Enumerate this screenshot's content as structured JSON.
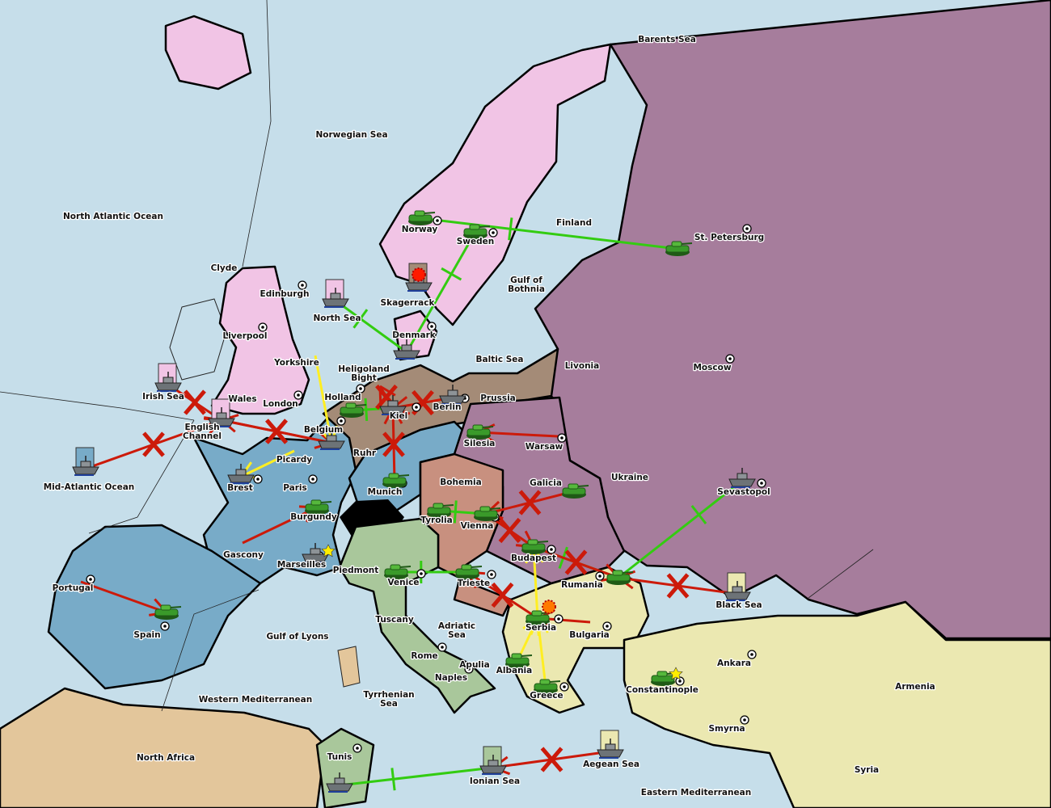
{
  "colors": {
    "sea": "#c6deea",
    "russia": "#a67d9c",
    "england": "#f1c4e5",
    "france": "#78abc8",
    "germany": "#a48b77",
    "austria": "#c8907f",
    "italy": "#a9c79b",
    "turkey": "#ebe8b1",
    "neutral_africa": "#e3c69b",
    "support_order": "#33cc11",
    "move_order": "#cc1a0a",
    "convoy_order": "#ffee22",
    "tank": "#3a9a2a",
    "ship": "#6d7377"
  },
  "labels": [
    "Barents Sea",
    "Norwegian Sea",
    "North Atlantic Ocean",
    "Finland",
    "St. Petersburg",
    "Norway",
    "Sweden",
    "Gulf of|Bothnia",
    "Clyde",
    "Edinburgh",
    "Skagerrack",
    "North Sea",
    "Liverpool",
    "Denmark",
    "Baltic Sea",
    "Livonia",
    "Moscow",
    "Yorkshire",
    "Heligoland|Bight",
    "Irish Sea",
    "Wales",
    "Holland",
    "Prussia",
    "London",
    "Berlin",
    "Kiel",
    "English|Channel",
    "Belgium",
    "Silesia",
    "Warsaw",
    "Ruhr",
    "Picardy",
    "Ukraine",
    "Bohemia",
    "Galicia",
    "Mid-Atlantic Ocean",
    "Brest",
    "Paris",
    "Munich",
    "Sevastopol",
    "Burgundy",
    "Tyrolia",
    "Vienna",
    "Gascony",
    "Budapest",
    "Marseilles",
    "Piedmont",
    "Rumania",
    "Portugal",
    "Venice",
    "Trieste",
    "Black Sea",
    "Tuscany",
    "Adriatic|Sea",
    "Serbia",
    "Bulgaria",
    "Spain",
    "Gulf of Lyons",
    "Rome",
    "Apulia",
    "Albania",
    "Ankara",
    "Naples",
    "Armenia",
    "Constantinople",
    "Greece",
    "Western Mediterranean",
    "Tyrrhenian|Sea",
    "Smyrna",
    "North Africa",
    "Tunis",
    "Aegean Sea",
    "Ionian Sea",
    "Syria",
    "Eastern Mediterranean"
  ],
  "units": [
    {
      "type": "army",
      "at": "Norway"
    },
    {
      "type": "army",
      "at": "Sweden"
    },
    {
      "type": "army",
      "at": "St. Petersburg"
    },
    {
      "type": "fleet",
      "at": "North Sea",
      "flag": "england"
    },
    {
      "type": "fleet",
      "at": "Skagerrack",
      "flag": "germany",
      "dislodged": true
    },
    {
      "type": "fleet",
      "at": "Denmark"
    },
    {
      "type": "fleet",
      "at": "Irish Sea",
      "flag": "england"
    },
    {
      "type": "fleet",
      "at": "English Channel",
      "flag": "england"
    },
    {
      "type": "fleet",
      "at": "Mid-Atlantic Ocean",
      "flag": "france"
    },
    {
      "type": "army",
      "at": "Holland"
    },
    {
      "type": "fleet",
      "at": "Kiel"
    },
    {
      "type": "fleet",
      "at": "Berlin"
    },
    {
      "type": "fleet",
      "at": "Belgium"
    },
    {
      "type": "army",
      "at": "Silesia"
    },
    {
      "type": "fleet",
      "at": "Brest"
    },
    {
      "type": "army",
      "at": "Munich"
    },
    {
      "type": "army",
      "at": "Burgundy"
    },
    {
      "type": "fleet",
      "at": "Marseilles",
      "star": true
    },
    {
      "type": "army",
      "at": "Spain"
    },
    {
      "type": "army",
      "at": "Tyrolia"
    },
    {
      "type": "army",
      "at": "Vienna"
    },
    {
      "type": "army",
      "at": "Galicia"
    },
    {
      "type": "fleet",
      "at": "Sevastopol"
    },
    {
      "type": "army",
      "at": "Budapest"
    },
    {
      "type": "army",
      "at": "Trieste"
    },
    {
      "type": "army",
      "at": "Venice"
    },
    {
      "type": "army",
      "at": "Rumania"
    },
    {
      "type": "fleet",
      "at": "Black Sea",
      "flag": "turkey"
    },
    {
      "type": "army",
      "at": "Serbia",
      "dislodged": true
    },
    {
      "type": "army",
      "at": "Albania"
    },
    {
      "type": "army",
      "at": "Greece"
    },
    {
      "type": "army",
      "at": "Constantinople",
      "star": true
    },
    {
      "type": "fleet",
      "at": "Aegean Sea",
      "flag": "turkey"
    },
    {
      "type": "fleet",
      "at": "Ionian Sea",
      "flag": "italy"
    },
    {
      "type": "fleet",
      "at": "Tunis"
    }
  ],
  "orders": [
    {
      "kind": "support",
      "from": "Norway",
      "to": "St. Petersburg"
    },
    {
      "kind": "support",
      "from": "Sweden",
      "to": "Denmark"
    },
    {
      "kind": "support",
      "from": "North Sea",
      "to": "Denmark"
    },
    {
      "kind": "support",
      "from": "Holland",
      "to": "Kiel"
    },
    {
      "kind": "support",
      "from": "Tyrolia",
      "to": "Vienna"
    },
    {
      "kind": "support",
      "from": "Venice",
      "to": "Trieste"
    },
    {
      "kind": "support",
      "from": "Budapest",
      "to": "Rumania"
    },
    {
      "kind": "support",
      "from": "Sevastopol",
      "to": "Rumania"
    },
    {
      "kind": "support",
      "from": "Tunis",
      "to": "Ionian Sea"
    },
    {
      "kind": "move",
      "from": "Mid-Atlantic Ocean",
      "to": "English Channel",
      "failed": true
    },
    {
      "kind": "move",
      "from": "Irish Sea",
      "to": "English Channel",
      "failed": true
    },
    {
      "kind": "move",
      "from": "English Channel",
      "to": "Belgium",
      "failed": true
    },
    {
      "kind": "move",
      "from": "Belgium",
      "to": "English Channel",
      "failed": true
    },
    {
      "kind": "move",
      "from": "Berlin",
      "to": "Kiel",
      "failed": true
    },
    {
      "kind": "move",
      "from": "Kiel",
      "to": "Heligoland Bight",
      "failed": true
    },
    {
      "kind": "move",
      "from": "Munich",
      "to": "Kiel",
      "failed": true
    },
    {
      "kind": "move",
      "from": "Warsaw",
      "to": "Silesia"
    },
    {
      "kind": "move",
      "from": "Galicia",
      "to": "Vienna",
      "failed": true
    },
    {
      "kind": "move",
      "from": "Vienna",
      "to": "Budapest",
      "failed": true
    },
    {
      "kind": "move",
      "from": "Black Sea",
      "to": "Rumania",
      "failed": true
    },
    {
      "kind": "move",
      "from": "Budapest",
      "to": "Rumania",
      "failed": true
    },
    {
      "kind": "move",
      "from": "Gascony",
      "to": "Burgundy"
    },
    {
      "kind": "move",
      "from": "Portugal",
      "to": "Spain"
    },
    {
      "kind": "move",
      "from": "Aegean Sea",
      "to": "Ionian Sea",
      "failed": true
    },
    {
      "kind": "move",
      "from": "Bulgaria",
      "to": "Serbia"
    },
    {
      "kind": "move",
      "from": "Serbia",
      "to": "Trieste",
      "failed": true
    },
    {
      "kind": "convoy",
      "from": "Yorkshire",
      "to": "Belgium"
    },
    {
      "kind": "convoy",
      "from": "Picardy",
      "to": "Brest"
    },
    {
      "kind": "convoy",
      "from": "Albania",
      "to": "Serbia"
    },
    {
      "kind": "convoy",
      "from": "Greece",
      "to": "Serbia"
    },
    {
      "kind": "convoy",
      "from": "Serbia",
      "to": "Budapest"
    }
  ],
  "supply_centers": [
    "Norway",
    "Sweden",
    "St. Petersburg",
    "Edinburgh",
    "Liverpool",
    "London",
    "Denmark",
    "Kiel",
    "Berlin",
    "Holland",
    "Belgium",
    "Warsaw",
    "Moscow",
    "Munich",
    "Paris",
    "Brest",
    "Marseilles",
    "Spain",
    "Portugal",
    "Vienna",
    "Budapest",
    "Trieste",
    "Venice",
    "Rome",
    "Naples",
    "Serbia",
    "Rumania",
    "Bulgaria",
    "Greece",
    "Constantinople",
    "Ankara",
    "Smyrna",
    "Sevastopol",
    "Tunis"
  ]
}
